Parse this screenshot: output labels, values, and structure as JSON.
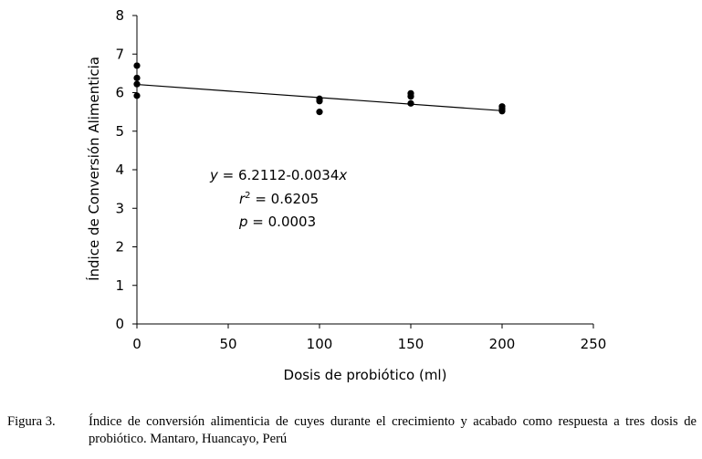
{
  "chart_data": {
    "type": "scatter",
    "xlabel": "Dosis de probiótico (ml)",
    "ylabel": "Índice de Conversión Alimenticia",
    "xlim": [
      0,
      250
    ],
    "ylim": [
      0,
      8
    ],
    "xticks": [
      "0",
      "50",
      "100",
      "150",
      "200",
      "250"
    ],
    "yticks": [
      "0",
      "1",
      "2",
      "3",
      "4",
      "5",
      "6",
      "7",
      "8"
    ],
    "grid": false,
    "series": [
      {
        "points": [
          {
            "x": 0,
            "y": 6.7
          },
          {
            "x": 0,
            "y": 6.38
          },
          {
            "x": 0,
            "y": 6.22
          },
          {
            "x": 0,
            "y": 5.92
          },
          {
            "x": 100,
            "y": 5.84
          },
          {
            "x": 100,
            "y": 5.78
          },
          {
            "x": 100,
            "y": 5.5
          },
          {
            "x": 150,
            "y": 5.98
          },
          {
            "x": 150,
            "y": 5.9
          },
          {
            "x": 150,
            "y": 5.72
          },
          {
            "x": 200,
            "y": 5.64
          },
          {
            "x": 200,
            "y": 5.58
          },
          {
            "x": 200,
            "y": 5.52
          }
        ]
      }
    ],
    "regression": {
      "intercept": 6.2112,
      "slope": -0.0034,
      "x_range": [
        0,
        200
      ]
    },
    "annotation": {
      "equation": "y = 6.2112-0.0034x",
      "r_squared": "r² = 0.6205",
      "p_value": "p = 0.0003"
    }
  },
  "caption": {
    "label": "Figura 3.",
    "text": "Índice de conversión alimenticia de cuyes durante el crecimiento y acabado como respuesta a tres dosis de probiótico. Mantaro, Huancayo, Perú"
  }
}
